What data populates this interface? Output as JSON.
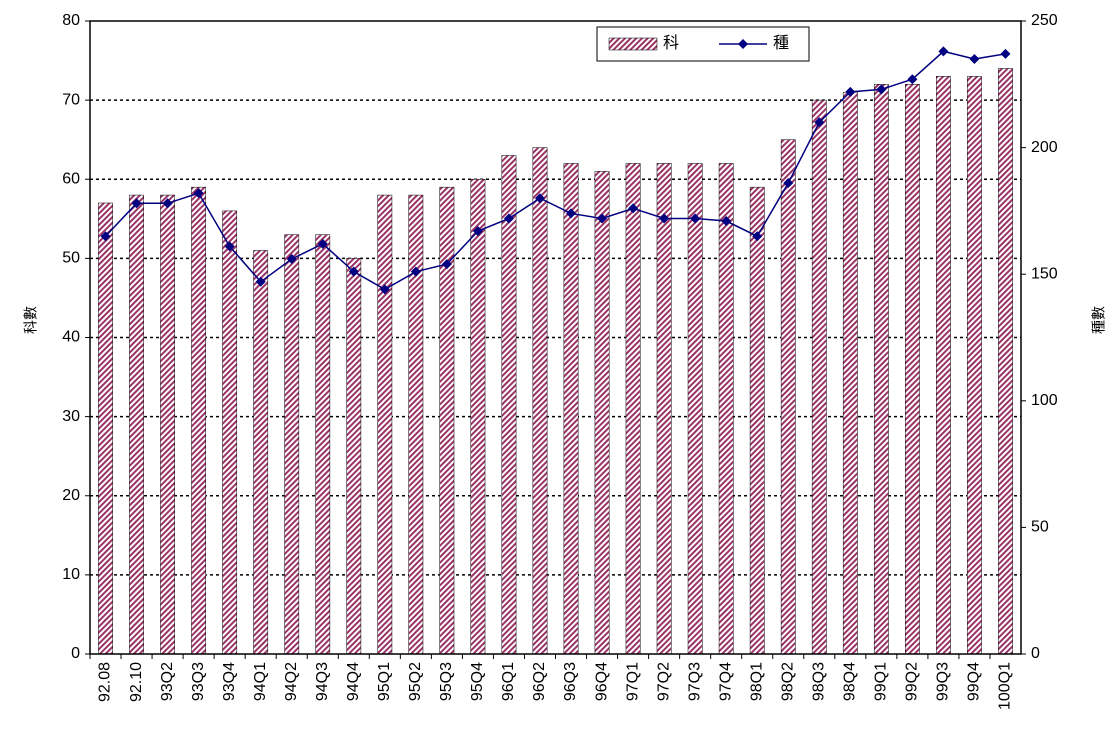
{
  "chart_data": {
    "type": "bar",
    "categories": [
      "92.08",
      "92.10",
      "93Q2",
      "93Q3",
      "93Q4",
      "94Q1",
      "94Q2",
      "94Q3",
      "94Q4",
      "95Q1",
      "95Q2",
      "95Q3",
      "95Q4",
      "96Q1",
      "96Q2",
      "96Q3",
      "96Q4",
      "97Q1",
      "97Q2",
      "97Q3",
      "97Q4",
      "98Q1",
      "98Q2",
      "98Q3",
      "98Q4",
      "99Q1",
      "99Q2",
      "99Q3",
      "99Q4",
      "100Q1"
    ],
    "series": [
      {
        "name": "科",
        "type": "bar",
        "color": "#993366",
        "values": [
          57,
          58,
          58,
          59,
          56,
          51,
          53,
          53,
          50,
          58,
          58,
          59,
          60,
          63,
          64,
          62,
          61,
          62,
          62,
          62,
          62,
          59,
          65,
          70,
          71,
          72,
          72,
          73,
          73,
          74
        ]
      },
      {
        "name": "種",
        "type": "line",
        "axis": "y2",
        "color": "#000080",
        "values": [
          165,
          178,
          178,
          182,
          161,
          147,
          156,
          162,
          151,
          144,
          151,
          154,
          167,
          172,
          180,
          174,
          172,
          176,
          172,
          172,
          171,
          165,
          186,
          210,
          222,
          223,
          227,
          238,
          235,
          237
        ]
      }
    ],
    "ylabel": "科數",
    "y2label": "種數",
    "ylim": [
      0,
      80
    ],
    "yticks": [
      0,
      10,
      20,
      30,
      40,
      50,
      60,
      70,
      80
    ],
    "y2lim": [
      0,
      250
    ],
    "y2ticks": [
      0,
      50,
      100,
      150,
      200,
      250
    ],
    "grid": true,
    "legend": "top-right"
  }
}
